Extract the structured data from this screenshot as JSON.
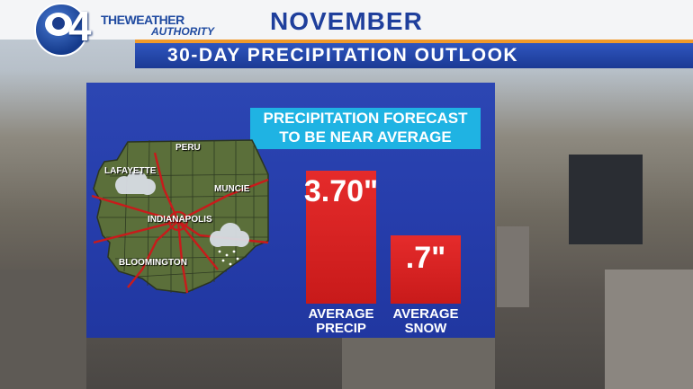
{
  "header": {
    "station_number": "4",
    "brand_line1": "THEWEATHER",
    "brand_line2": "AUTHORITY",
    "month": "NOVEMBER",
    "subtitle": "30-DAY PRECIPITATION OUTLOOK"
  },
  "forecast": {
    "line1": "PRECIPITATION FORECAST",
    "line2": "TO BE NEAR AVERAGE"
  },
  "map": {
    "cities": [
      "PERU",
      "LAFAYETTE",
      "MUNCIE",
      "INDIANAPOLIS",
      "BLOOMINGTON"
    ]
  },
  "bars": [
    {
      "value": "3.70\"",
      "label1": "AVERAGE",
      "label2": "PRECIP",
      "color": "#d81f1f"
    },
    {
      "value": ".7\"",
      "label1": "AVERAGE",
      "label2": "SNOW",
      "color": "#d81f1f"
    }
  ],
  "colors": {
    "brand_blue": "#1f3f9c",
    "accent_orange": "#f19a2a",
    "forecast_cyan": "#1fb3e3",
    "panel_blue": "#2540b0"
  }
}
